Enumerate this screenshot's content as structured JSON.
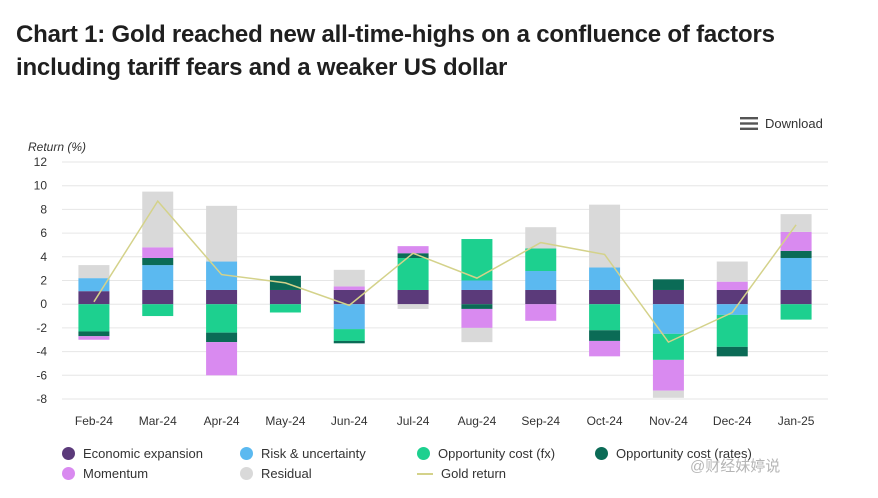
{
  "title": "Chart 1: Gold reached new all-time-highs on a confluence of factors including tariff fears and a weaker US dollar",
  "download_label": "Download",
  "watermark": "@财经妹婷说",
  "chart_data": {
    "type": "bar",
    "stacked": true,
    "ylabel": "Return (%)",
    "ylim": [
      -8,
      12
    ],
    "yticks": [
      -8,
      -6,
      -4,
      -2,
      0,
      2,
      4,
      6,
      8,
      10,
      12
    ],
    "grid": true,
    "legend_position": "bottom",
    "categories": [
      "Feb-24",
      "Mar-24",
      "Apr-24",
      "May-24",
      "Jun-24",
      "Jul-24",
      "Aug-24",
      "Sep-24",
      "Oct-24",
      "Nov-24",
      "Dec-24",
      "Jan-25"
    ],
    "series": [
      {
        "name": "Economic expansion",
        "color": "#5b3a7a",
        "values": [
          1.1,
          1.2,
          1.2,
          1.2,
          1.2,
          1.2,
          1.2,
          1.2,
          1.2,
          1.2,
          1.2,
          1.2
        ]
      },
      {
        "name": "Risk & uncertainty",
        "color": "#5bb9f0",
        "values": [
          1.1,
          2.1,
          2.4,
          0.0,
          -2.1,
          0.0,
          0.8,
          1.6,
          1.9,
          -2.5,
          -0.9,
          2.7
        ]
      },
      {
        "name": "Opportunity cost (fx)",
        "color": "#1dd08f",
        "values": [
          -2.3,
          -1.0,
          -2.4,
          -0.7,
          -1.0,
          2.7,
          3.5,
          1.9,
          -2.2,
          -2.2,
          -2.7,
          -1.3
        ]
      },
      {
        "name": "Opportunity cost (rates)",
        "color": "#0b6b56",
        "values": [
          -0.4,
          0.6,
          -0.8,
          1.2,
          -0.2,
          0.4,
          -0.4,
          0.0,
          -0.9,
          0.9,
          -0.8,
          0.6
        ]
      },
      {
        "name": "Momentum",
        "color": "#d98af0",
        "values": [
          -0.3,
          0.9,
          -2.8,
          0.0,
          0.3,
          0.6,
          -1.6,
          -1.4,
          -1.3,
          -2.6,
          0.7,
          1.6
        ]
      },
      {
        "name": "Residual",
        "color": "#d9d9d9",
        "values": [
          1.1,
          4.7,
          4.7,
          0.0,
          1.4,
          -0.4,
          -1.2,
          1.8,
          5.3,
          -0.6,
          1.7,
          1.5
        ]
      }
    ],
    "line": {
      "name": "Gold return",
      "color": "#d4d28a",
      "values": [
        0.2,
        8.7,
        2.5,
        1.8,
        -0.1,
        4.3,
        2.2,
        5.2,
        4.2,
        -3.2,
        -0.7,
        6.7
      ]
    }
  }
}
